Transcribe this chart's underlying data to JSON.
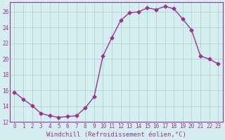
{
  "x": [
    0,
    1,
    2,
    3,
    4,
    5,
    6,
    7,
    8,
    9,
    10,
    11,
    12,
    13,
    14,
    15,
    16,
    17,
    18,
    19,
    20,
    21,
    22,
    23
  ],
  "y": [
    15.8,
    14.9,
    14.1,
    13.1,
    12.8,
    12.6,
    12.7,
    12.8,
    13.8,
    15.2,
    20.4,
    22.7,
    24.9,
    25.9,
    26.0,
    26.5,
    26.3,
    26.7,
    26.4,
    25.1,
    23.7,
    20.4,
    20.0,
    19.4
  ],
  "line_color": "#993399",
  "marker": "D",
  "markersize": 2.5,
  "background_color": "#d5eef0",
  "grid_color": "#aacccc",
  "xlabel": "Windchill (Refroidissement éolien,°C)",
  "ylim": [
    12,
    27
  ],
  "xlim_min": -0.5,
  "xlim_max": 23.5,
  "yticks": [
    12,
    14,
    16,
    18,
    20,
    22,
    24,
    26
  ],
  "xticks": [
    0,
    1,
    2,
    3,
    4,
    5,
    6,
    7,
    8,
    9,
    10,
    11,
    12,
    13,
    14,
    15,
    16,
    17,
    18,
    19,
    20,
    21,
    22,
    23
  ],
  "tick_color": "#993399",
  "label_color": "#993399",
  "tick_fontsize": 5.5,
  "xlabel_fontsize": 6.5,
  "linewidth": 1.0,
  "spine_color": "#993399",
  "grid_linewidth": 0.5
}
